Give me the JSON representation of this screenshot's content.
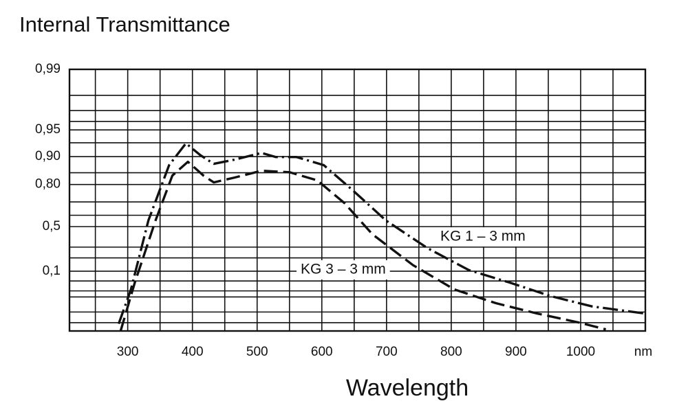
{
  "chart_data": {
    "type": "line",
    "title": "Internal Transmittance",
    "x_label": "Wavelength",
    "x_unit": "nm",
    "yscale": "diabatic",
    "xlim": [
      210,
      1100
    ],
    "ylim": [
      1e-05,
      0.99
    ],
    "xticks": [
      300,
      400,
      500,
      600,
      700,
      800,
      900,
      1000
    ],
    "xminor": [
      250,
      350,
      450,
      550,
      650,
      750,
      850,
      950,
      1050
    ],
    "yticks": [
      {
        "value": 0.99,
        "label": "0,99"
      },
      {
        "value": 0.95,
        "label": "0,95"
      },
      {
        "value": 0.9,
        "label": "0,90"
      },
      {
        "value": 0.8,
        "label": "0,80"
      },
      {
        "value": 0.5,
        "label": "0,5"
      },
      {
        "value": 0.1,
        "label": "0,1"
      }
    ],
    "yminor": [
      0.98,
      0.97,
      0.96,
      0.93,
      0.85,
      0.7,
      0.6,
      0.3,
      0.2,
      0.05,
      0.02,
      0.01,
      0.001,
      0.0001
    ],
    "grid": true,
    "series": [
      {
        "name": "KG 1 – 3 mm",
        "color": "#111111",
        "dash": "dashdot",
        "x": [
          286,
          305,
          332,
          364,
          390,
          412,
          433,
          465,
          507,
          529,
          561,
          603,
          646,
          699,
          763,
          827,
          890,
          954,
          1018,
          1100
        ],
        "values": [
          7.5e-05,
          0.023,
          0.556,
          0.876,
          0.929,
          0.904,
          0.88,
          0.892,
          0.909,
          0.899,
          0.899,
          0.876,
          0.776,
          0.556,
          0.291,
          0.107,
          0.044,
          0.011,
          0.0026,
          0.00075
        ]
      },
      {
        "name": "KG 3 – 3 mm",
        "color": "#111111",
        "dash": "dashed",
        "x": [
          289,
          311,
          343,
          369,
          393,
          417,
          433,
          465,
          507,
          550,
          593,
          635,
          678,
          741,
          805,
          869,
          933,
          997,
          1039
        ],
        "values": [
          1e-05,
          0.044,
          0.556,
          0.839,
          0.886,
          0.839,
          0.81,
          0.831,
          0.857,
          0.852,
          0.819,
          0.692,
          0.428,
          0.141,
          0.023,
          0.0043,
          0.00075,
          0.000105,
          1.6e-05
        ]
      }
    ]
  }
}
